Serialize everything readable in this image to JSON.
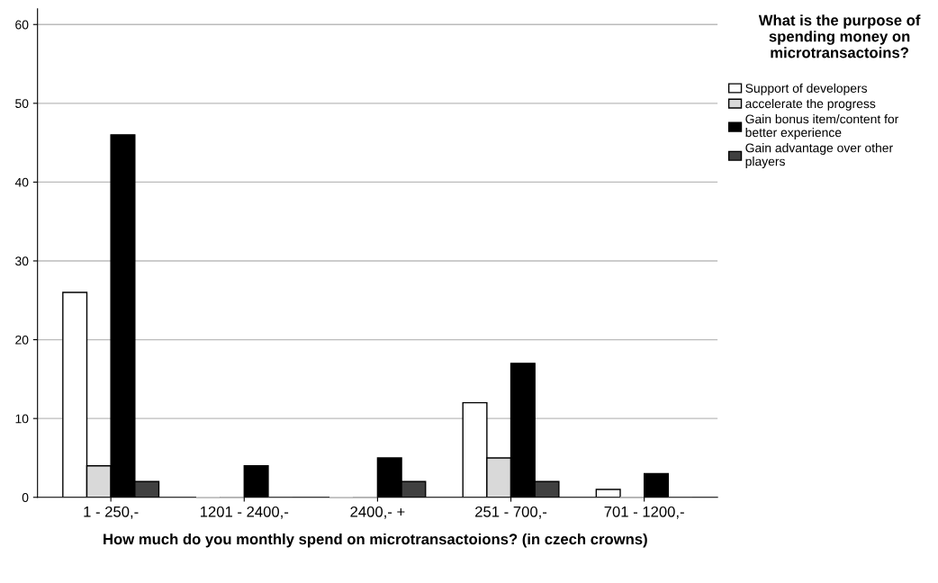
{
  "chart_data": {
    "type": "bar",
    "xlabel": "How much do you monthly spend on microtransactoions? (in czech crowns)",
    "legend_title": "What is the purpose of spending money on microtransactoins?",
    "categories": [
      "1 - 250,-",
      "1201 - 2400,-",
      "2400,- +",
      "251 - 700,-",
      "701 - 1200,-"
    ],
    "series": [
      {
        "name": "Support of developers",
        "color": "#ffffff",
        "values": [
          26,
          0,
          0,
          12,
          1
        ]
      },
      {
        "name": "accelerate the progress",
        "color": "#d9d9d9",
        "values": [
          4,
          0,
          0,
          5,
          0
        ]
      },
      {
        "name": "Gain bonus item/content for better experience",
        "color": "#000000",
        "values": [
          46,
          4,
          5,
          17,
          3
        ]
      },
      {
        "name": "Gain advantage over other players",
        "color": "#404040",
        "values": [
          2,
          0,
          2,
          2,
          0
        ]
      }
    ],
    "ylim": [
      0,
      62
    ],
    "yticks": [
      0,
      10,
      20,
      30,
      40,
      50,
      60
    ],
    "grid": "y",
    "legend": "top right"
  }
}
